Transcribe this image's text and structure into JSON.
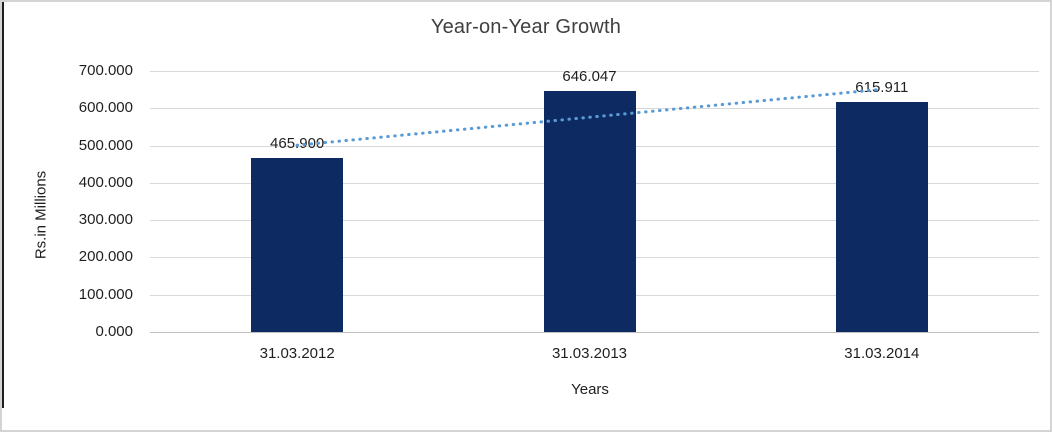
{
  "chart_data": {
    "type": "bar",
    "title": "Year-on-Year Growth",
    "xlabel": "Years",
    "ylabel": "Rs.in Millions",
    "categories": [
      "31.03.2012",
      "31.03.2013",
      "31.03.2014"
    ],
    "values": [
      465.9,
      646.047,
      615.911
    ],
    "value_labels": [
      "465.900",
      "646.047",
      "615.911"
    ],
    "ylim": [
      0,
      700
    ],
    "yticks": [
      {
        "value": 700,
        "label": "700.000"
      },
      {
        "value": 600,
        "label": "600.000"
      },
      {
        "value": 500,
        "label": "500.000"
      },
      {
        "value": 400,
        "label": "400.000"
      },
      {
        "value": 300,
        "label": "300.000"
      },
      {
        "value": 200,
        "label": "200.000"
      },
      {
        "value": 100,
        "label": "100.000"
      },
      {
        "value": 0,
        "label": "0.000"
      }
    ],
    "grid": true,
    "legend": "none",
    "bar_color": "#0D2A63",
    "trendline": {
      "type": "linear",
      "style": "dotted",
      "color": "#5B9BD5"
    }
  },
  "colors": {
    "background": "#FFFFFF",
    "outer_border": "#D4D4D4",
    "frame_left_line": "#1F1F1F",
    "gridline": "#D9D9D9",
    "axis_line": "#BFBFBF",
    "text": "#1F1F1F",
    "title_text": "#404040"
  }
}
